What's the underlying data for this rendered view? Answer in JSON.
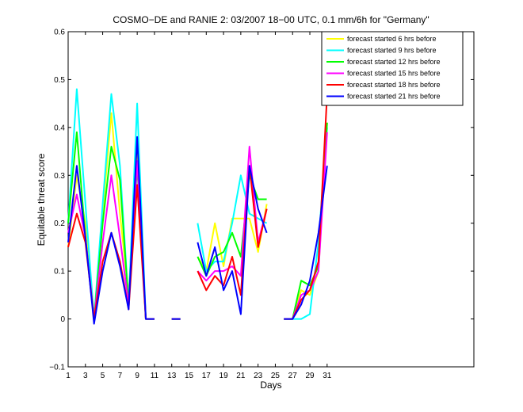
{
  "chart_data": {
    "type": "line",
    "title": "COSMO−DE and RANIE 2: 03/2007 18−00 UTC, 0.1 mm/6h for \"Germany\"",
    "xlabel": "Days",
    "ylabel": "Equitable threat score",
    "xlim": [
      1,
      48
    ],
    "ylim": [
      -0.1,
      0.6
    ],
    "xticks": [
      1,
      3,
      5,
      7,
      9,
      11,
      13,
      15,
      17,
      19,
      21,
      23,
      25,
      27,
      29,
      31
    ],
    "yticks": [
      -0.1,
      0,
      0.1,
      0.2,
      0.3,
      0.4,
      0.5,
      0.6
    ],
    "ytick_labels": [
      "−0.1",
      "0",
      "0.1",
      "0.2",
      "0.3",
      "0.4",
      "0.5",
      "0.6"
    ],
    "grid": false,
    "legend_position": "top-right",
    "x": [
      1,
      2,
      3,
      4,
      5,
      6,
      7,
      8,
      9,
      10,
      11,
      12,
      13,
      14,
      15,
      16,
      17,
      18,
      19,
      20,
      21,
      22,
      23,
      24,
      25,
      26,
      27,
      28,
      29,
      30,
      31
    ],
    "series": [
      {
        "name": "forecast started 6 hrs before",
        "color": "#ffff00",
        "values": [
          0.15,
          0.3,
          0.2,
          0,
          0.22,
          0.43,
          0.22,
          0.05,
          0.36,
          0,
          0,
          null,
          0,
          0,
          null,
          0.13,
          0.1,
          0.2,
          0.11,
          0.21,
          0.21,
          0.21,
          0.14,
          0.24,
          null,
          0,
          0,
          0.06,
          0.05,
          0.1,
          0.41
        ]
      },
      {
        "name": "forecast started 9 hrs before",
        "color": "#00ffff",
        "values": [
          0.2,
          0.48,
          0.24,
          0,
          0.24,
          0.47,
          0.32,
          0.03,
          0.45,
          0,
          0,
          null,
          0,
          0,
          null,
          0.2,
          0.1,
          0.12,
          0.12,
          0.2,
          0.3,
          0.22,
          0.21,
          0.2,
          null,
          0,
          0,
          0,
          0.01,
          0.16,
          0.4
        ]
      },
      {
        "name": "forecast started 12 hrs before",
        "color": "#00ff00",
        "values": [
          0.2,
          0.39,
          0.17,
          0,
          0.2,
          0.36,
          0.29,
          0.03,
          0.32,
          0,
          0,
          null,
          0,
          0,
          null,
          0.13,
          0.09,
          0.13,
          0.14,
          0.18,
          0.13,
          0.3,
          0.25,
          0.25,
          null,
          0,
          0,
          0.08,
          0.07,
          0.11,
          0.41
        ]
      },
      {
        "name": "forecast started 15 hrs before",
        "color": "#ff00ff",
        "values": [
          0.18,
          0.26,
          0.17,
          0,
          0.16,
          0.3,
          0.17,
          0.03,
          0.33,
          0,
          0,
          null,
          0,
          0,
          null,
          0.1,
          0.08,
          0.1,
          0.1,
          0.11,
          0.09,
          0.36,
          0.16,
          0.23,
          null,
          0,
          0,
          0.05,
          0.06,
          0.1,
          0.39
        ]
      },
      {
        "name": "forecast started 18 hrs before",
        "color": "#ff0000",
        "values": [
          0.15,
          0.22,
          0.16,
          0,
          0.12,
          0.18,
          0.12,
          0.02,
          0.28,
          0,
          0,
          null,
          0,
          0,
          null,
          0.1,
          0.06,
          0.09,
          0.07,
          0.13,
          0.05,
          0.32,
          0.15,
          0.23,
          null,
          0,
          0,
          0.04,
          0.06,
          0.12,
          0.47
        ]
      },
      {
        "name": "forecast started 21 hrs before",
        "color": "#0000ff",
        "values": [
          0.16,
          0.32,
          0.17,
          -0.01,
          0.1,
          0.18,
          0.11,
          0.02,
          0.38,
          0,
          0,
          null,
          0,
          0,
          null,
          0.16,
          0.09,
          0.15,
          0.06,
          0.1,
          0.01,
          0.32,
          0.23,
          0.18,
          null,
          0,
          0,
          0.03,
          0.08,
          0.18,
          0.32
        ]
      }
    ]
  }
}
